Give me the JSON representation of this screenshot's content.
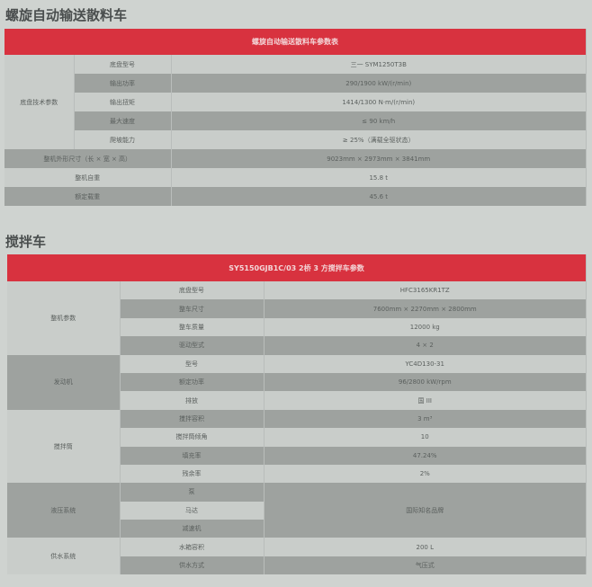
{
  "table1": {
    "section_title": "螺旋自动输送散料车",
    "header": "螺旋自动输送散料车参数表",
    "group": "底盘技术参数",
    "rows": [
      [
        "底盘型号",
        "三一 SYM1250T3B"
      ],
      [
        "输出功率",
        "290/1900 kW/(r/min)"
      ],
      [
        "输出扭矩",
        "1414/1300 N·m/(r/min)"
      ],
      [
        "最大速度",
        "≤ 90 km/h"
      ],
      [
        "爬坡能力",
        "≥ 25%（满载全驱状态）"
      ]
    ],
    "full_rows": [
      [
        "整机外形尺寸（长 × 宽 × 高）",
        "9023mm × 2973mm × 3841mm"
      ],
      [
        "整机自重",
        "15.8 t"
      ],
      [
        "额定载重",
        "45.6 t"
      ]
    ]
  },
  "table2": {
    "section_title": "搅拌车",
    "header": "SY5150GJB1C/03 2桥 3 方搅拌车参数",
    "groups": [
      {
        "name": "整机参数",
        "rows": [
          [
            "底盘型号",
            "HFC3165KR1TZ"
          ],
          [
            "整车尺寸",
            "7600mm × 2270mm × 2800mm"
          ],
          [
            "整车质量",
            "12000 kg"
          ],
          [
            "驱动型式",
            "4 × 2"
          ]
        ]
      },
      {
        "name": "发动机",
        "rows": [
          [
            "型号",
            "YC4D130-31"
          ],
          [
            "额定功率",
            "96/2800 kW/rpm"
          ],
          [
            "排放",
            "国 III"
          ]
        ]
      },
      {
        "name": "搅拌筒",
        "rows": [
          [
            "搅拌容积",
            "3 m³"
          ],
          [
            "搅拌筒倾角",
            "10"
          ],
          [
            "填充率",
            "47.24%"
          ],
          [
            "残余率",
            "2%"
          ]
        ]
      },
      {
        "name": "液压系统",
        "rows": [
          [
            "泵"
          ],
          [
            "马达"
          ],
          [
            "减速机"
          ]
        ],
        "shared_value": "国际知名品牌"
      },
      {
        "name": "供水系统",
        "rows": [
          [
            "水箱容积",
            "200 L"
          ],
          [
            "供水方式",
            "气压式"
          ]
        ]
      }
    ]
  }
}
